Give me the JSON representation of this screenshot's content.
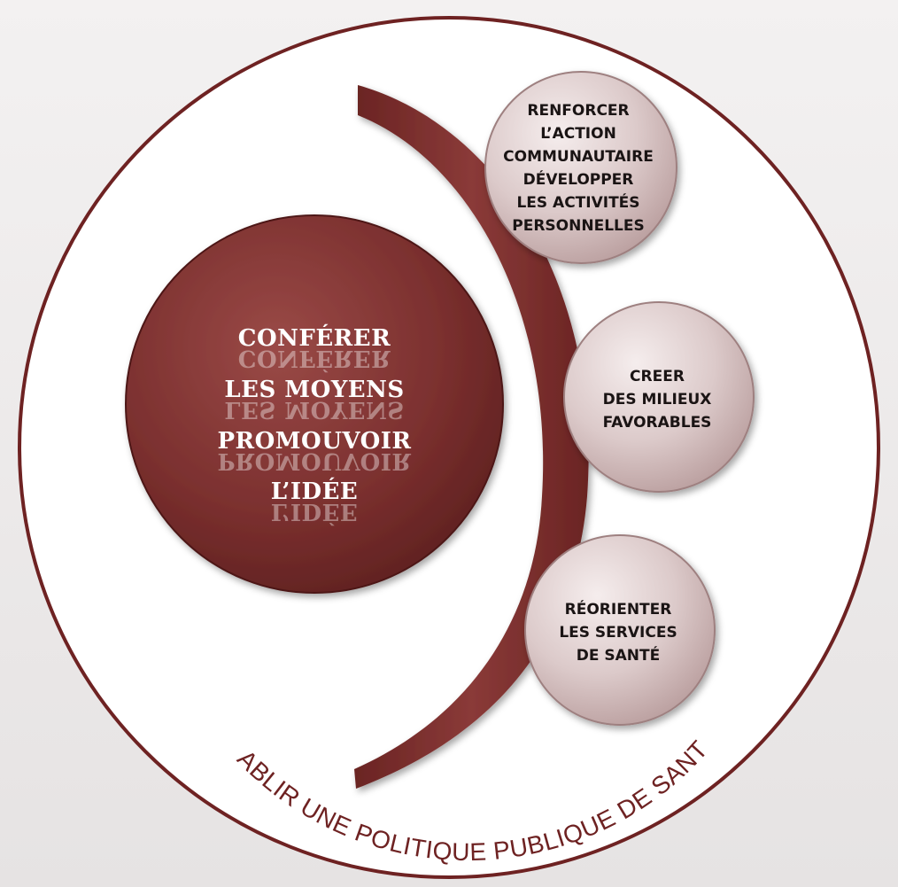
{
  "center": {
    "lines": [
      "CONFÉRER",
      "LES MOYENS",
      "PROMOUVOIR",
      "L’IDÉE"
    ]
  },
  "bubbles": [
    {
      "name": "renforcer",
      "lines": [
        "RENFORCER",
        "L’ACTION",
        "COMMUNAUTAIRE",
        "DÉVELOPPER",
        "LES ACTIVITÉS",
        "PERSONNELLES"
      ]
    },
    {
      "name": "creer",
      "lines": [
        "CREER",
        "DES MILIEUX",
        "FAVORABLES"
      ]
    },
    {
      "name": "reorienter",
      "lines": [
        "RÉORIENTER",
        "LES SERVICES",
        "DE SANTÉ"
      ]
    }
  ],
  "outer_label": "ÉTABLIR UNE POLITIQUE PUBLIQUE DE SANTÉ",
  "colors": {
    "maroon": "#7a2f2e",
    "maroon_dark": "#5a1f1e",
    "bubble_fill": "#d8c6c6",
    "outline": "#6e2222",
    "text_dark": "#1a1414"
  }
}
